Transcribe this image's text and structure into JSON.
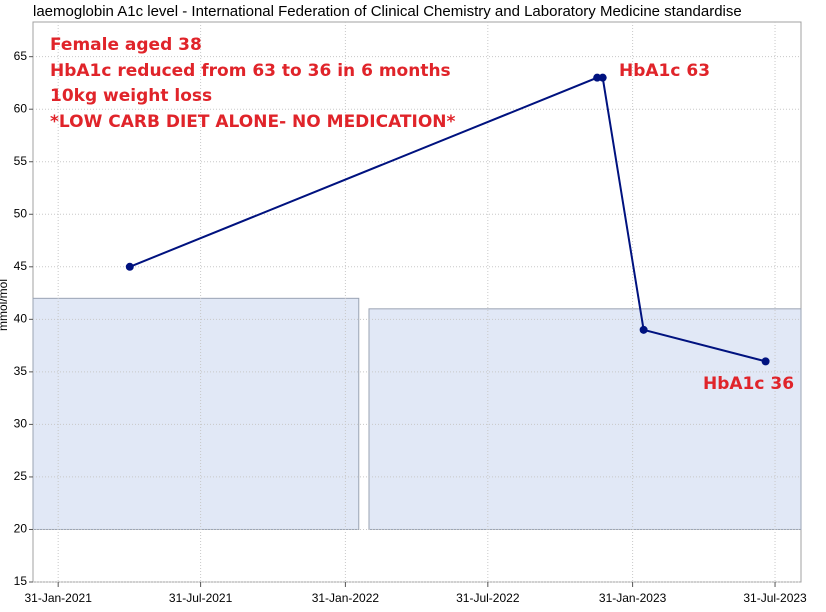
{
  "chart_data": {
    "type": "line",
    "title": "laemoglobin A1c level - International Federation of Clinical Chemistry and Laboratory Medicine standardise",
    "ylabel": "mmol/mol",
    "x": [
      "2021-05-02",
      "2022-12-17",
      "2022-12-24",
      "2023-02-14",
      "2023-07-19"
    ],
    "series": [
      {
        "name": "HbA1c",
        "color": "#00127f",
        "values": [
          45,
          63,
          63,
          39,
          36
        ]
      }
    ],
    "xlim": [
      "2020-12-30",
      "2023-09-02"
    ],
    "ylim": [
      15,
      68.3
    ],
    "xticks": [
      {
        "value": "2021-01-31",
        "label": "31-Jan-2021"
      },
      {
        "value": "2021-07-31",
        "label": "31-Jul-2021"
      },
      {
        "value": "2022-01-31",
        "label": "31-Jan-2022"
      },
      {
        "value": "2022-07-31",
        "label": "31-Jul-2022"
      },
      {
        "value": "2023-01-31",
        "label": "31-Jan-2023"
      },
      {
        "value": "2023-07-31",
        "label": "31-Jul-2023"
      }
    ],
    "yticks": [
      15,
      20,
      25,
      30,
      35,
      40,
      45,
      50,
      55,
      60,
      65
    ],
    "grid": true,
    "bands": [
      {
        "x0": "2020-12-30",
        "x1": "2022-02-17",
        "y0": 20,
        "y1": 42,
        "color": "#e1e8f6"
      },
      {
        "x0": "2022-03-02",
        "x1": "2023-09-02",
        "y0": 20,
        "y1": 41,
        "color": "#e1e8f6"
      }
    ],
    "annotations": [
      "Female aged 38",
      "HbA1c reduced from 63 to 36 in 6 months",
      "10kg weight loss",
      "*LOW CARB DIET ALONE- NO MEDICATION*",
      "HbA1c 63",
      "HbA1c 36"
    ]
  }
}
